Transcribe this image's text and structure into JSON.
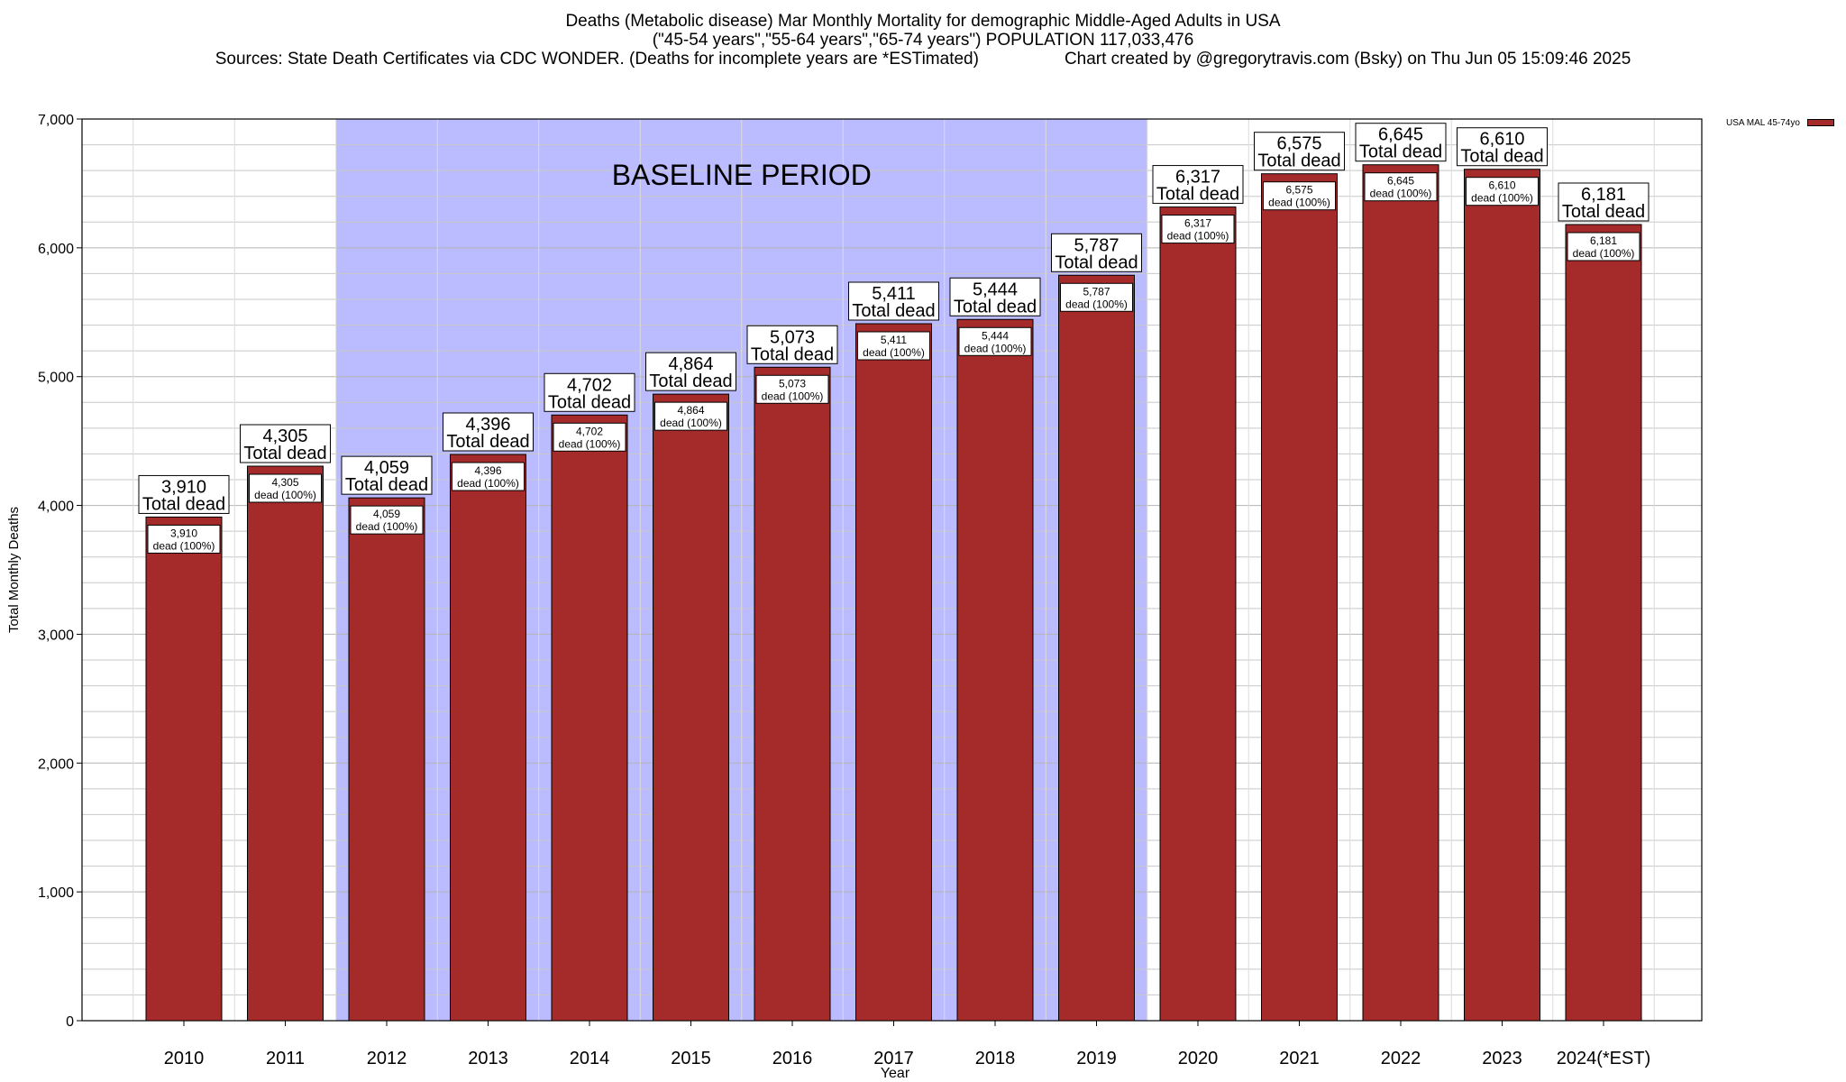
{
  "chart_data": {
    "type": "bar",
    "title": "Deaths (Metabolic disease) Mar Monthly Mortality for demographic Middle-Aged Adults in USA",
    "subtitle": "(\"45-54 years\",\"55-64 years\",\"65-74 years\") POPULATION 117,033,476",
    "sources": "Sources: State Death Certificates via CDC WONDER. (Deaths for incomplete years are *ESTimated)",
    "credit": "Chart created by @gregorytravis.com (Bsky) on Thu Jun 05 15:09:46 2025",
    "xlabel": "Year",
    "ylabel": "Total Monthly Deaths",
    "ylim": [
      0,
      7000
    ],
    "yticks": [
      0,
      1000,
      2000,
      3000,
      4000,
      5000,
      6000,
      7000
    ],
    "ytick_labels": [
      "0",
      "1,000",
      "2,000",
      "3,000",
      "4,000",
      "5,000",
      "6,000",
      "7,000"
    ],
    "grid": true,
    "categories": [
      "2010",
      "2011",
      "2012",
      "2013",
      "2014",
      "2015",
      "2016",
      "2017",
      "2018",
      "2019",
      "2020",
      "2021",
      "2022",
      "2023",
      "2024(*EST)"
    ],
    "series": [
      {
        "name": "USA MAL 45-74yo",
        "values": [
          3910,
          4305,
          4059,
          4396,
          4702,
          4864,
          5073,
          5411,
          5444,
          5787,
          6317,
          6575,
          6645,
          6610,
          6181
        ]
      }
    ],
    "value_labels": [
      "3,910",
      "4,305",
      "4,059",
      "4,396",
      "4,702",
      "4,864",
      "5,073",
      "5,411",
      "5,444",
      "5,787",
      "6,317",
      "6,575",
      "6,645",
      "6,610",
      "6,181"
    ],
    "total_label_suffix": "Total dead",
    "inner_label_suffix": "dead (100%)",
    "baseline_period": {
      "label": "BASELINE PERIOD",
      "from": "2012",
      "to": "2019"
    },
    "legend_placement": "top-right",
    "colors": {
      "bar": "#a52a2a",
      "bar_edge": "#000000",
      "baseline_band": "#bbbbff",
      "grid": "#c8c8c8"
    }
  }
}
